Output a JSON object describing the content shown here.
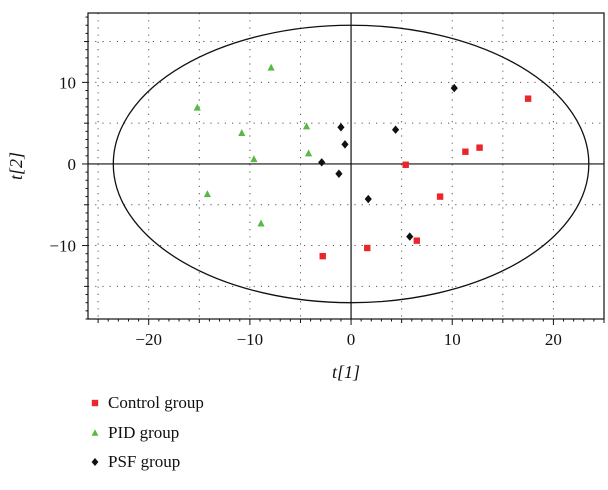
{
  "chart_data": {
    "type": "scatter",
    "xlabel": "t[1]",
    "ylabel": "t[2]",
    "xlim": [
      -26,
      25
    ],
    "ylim": [
      -19,
      18.5
    ],
    "xticks": [
      -20,
      -10,
      0,
      10,
      20
    ],
    "yticks": [
      -10,
      0,
      10
    ],
    "grid": true,
    "legend_position": "bottom-left",
    "ellipse": {
      "center": [
        0,
        0
      ],
      "rx": 23.5,
      "ry": 17
    },
    "series": [
      {
        "name": "Control group",
        "marker": "square",
        "color": "#e8262b",
        "points": [
          [
            17.5,
            8.0
          ],
          [
            11.3,
            1.5
          ],
          [
            12.7,
            2.0
          ],
          [
            5.4,
            -0.1
          ],
          [
            8.8,
            -4.0
          ],
          [
            6.5,
            -9.4
          ],
          [
            1.6,
            -10.3
          ],
          [
            -2.8,
            -11.3
          ]
        ]
      },
      {
        "name": "PID group",
        "marker": "triangle",
        "color": "#5ab946",
        "points": [
          [
            -7.9,
            11.8
          ],
          [
            -15.2,
            6.9
          ],
          [
            -4.4,
            4.6
          ],
          [
            -10.8,
            3.8
          ],
          [
            -4.2,
            1.3
          ],
          [
            -9.6,
            0.6
          ],
          [
            -14.2,
            -3.7
          ],
          [
            -8.9,
            -7.3
          ]
        ]
      },
      {
        "name": "PSF group",
        "marker": "diamond",
        "color": "#111111",
        "points": [
          [
            10.2,
            9.3
          ],
          [
            -1.0,
            4.5
          ],
          [
            4.4,
            4.2
          ],
          [
            -0.6,
            2.4
          ],
          [
            -2.9,
            0.2
          ],
          [
            -1.2,
            -1.2
          ],
          [
            1.7,
            -4.3
          ],
          [
            5.8,
            -8.9
          ]
        ]
      }
    ]
  }
}
